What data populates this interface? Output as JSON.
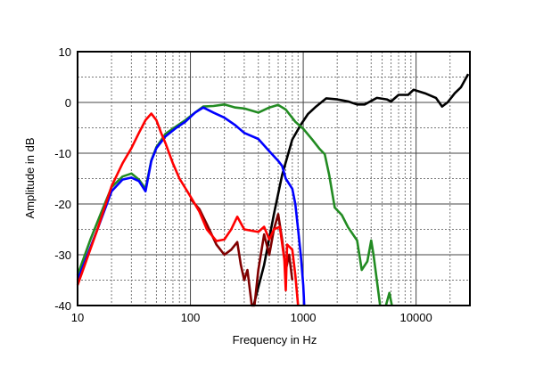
{
  "chart_data": {
    "type": "line",
    "title": "",
    "xlabel": "Frequency in Hz",
    "ylabel": "Amplitude in dB",
    "xscale": "log",
    "xlim": [
      10,
      30000
    ],
    "ylim": [
      -40,
      10
    ],
    "grid": true,
    "x_ticks": [
      "10",
      "100",
      "1000",
      "10000"
    ],
    "y_ticks": [
      "10",
      "0",
      "-10",
      "-20",
      "-30",
      "-40"
    ],
    "series": [
      {
        "color": "#000000",
        "points": [
          [
            363,
            -40
          ],
          [
            450,
            -32
          ],
          [
            550,
            -22
          ],
          [
            650,
            -14.3
          ],
          [
            800,
            -7.3
          ],
          [
            950,
            -4.4
          ],
          [
            1100,
            -2.3
          ],
          [
            1300,
            -0.8
          ],
          [
            1600,
            0.8
          ],
          [
            2000,
            0.6
          ],
          [
            2500,
            0.2
          ],
          [
            3000,
            -0.4
          ],
          [
            3500,
            -0.4
          ],
          [
            4500,
            0.9
          ],
          [
            5500,
            0.6
          ],
          [
            6000,
            0.2
          ],
          [
            7000,
            1.5
          ],
          [
            8500,
            1.5
          ],
          [
            9500,
            2.5
          ],
          [
            12000,
            1.8
          ],
          [
            15000,
            0.9
          ],
          [
            17000,
            -0.8
          ],
          [
            19000,
            0
          ],
          [
            22000,
            1.8
          ],
          [
            25000,
            3
          ],
          [
            29000,
            5.6
          ]
        ]
      },
      {
        "color": "#228b22",
        "points": [
          [
            10,
            -34
          ],
          [
            13,
            -27
          ],
          [
            16,
            -22
          ],
          [
            20,
            -16.7
          ],
          [
            25,
            -14.6
          ],
          [
            30,
            -14
          ],
          [
            35,
            -15.2
          ],
          [
            40,
            -17
          ],
          [
            45,
            -11.4
          ],
          [
            50,
            -8.8
          ],
          [
            60,
            -6.2
          ],
          [
            75,
            -4.7
          ],
          [
            90,
            -3.5
          ],
          [
            110,
            -2
          ],
          [
            130,
            -0.8
          ],
          [
            160,
            -0.7
          ],
          [
            200,
            -0.4
          ],
          [
            250,
            -1
          ],
          [
            300,
            -1.2
          ],
          [
            400,
            -2
          ],
          [
            500,
            -1
          ],
          [
            600,
            -0.5
          ],
          [
            700,
            -1.4
          ],
          [
            850,
            -3.8
          ],
          [
            1000,
            -5.2
          ],
          [
            1200,
            -7.3
          ],
          [
            1400,
            -9.2
          ],
          [
            1550,
            -10.2
          ],
          [
            1700,
            -14.3
          ],
          [
            1900,
            -20.7
          ],
          [
            2200,
            -22.2
          ],
          [
            2500,
            -24.6
          ],
          [
            3000,
            -27.2
          ],
          [
            3300,
            -33
          ],
          [
            3700,
            -31.3
          ],
          [
            4000,
            -27.2
          ],
          [
            4200,
            -30
          ],
          [
            4800,
            -40
          ]
        ]
      },
      {
        "color": "#228b22",
        "points": [
          [
            5400,
            -40
          ],
          [
            5800,
            -37.5
          ],
          [
            6100,
            -40
          ]
        ]
      },
      {
        "color": "#0000ff",
        "points": [
          [
            10,
            -35
          ],
          [
            15,
            -25
          ],
          [
            20,
            -17.5
          ],
          [
            25,
            -15.2
          ],
          [
            30,
            -14.8
          ],
          [
            35,
            -15.5
          ],
          [
            40,
            -17.5
          ],
          [
            45,
            -11.5
          ],
          [
            50,
            -9
          ],
          [
            60,
            -6.7
          ],
          [
            75,
            -5
          ],
          [
            90,
            -3.8
          ],
          [
            110,
            -2
          ],
          [
            130,
            -1
          ],
          [
            160,
            -2
          ],
          [
            200,
            -3
          ],
          [
            250,
            -4.5
          ],
          [
            300,
            -6
          ],
          [
            400,
            -7.2
          ],
          [
            500,
            -9.6
          ],
          [
            600,
            -11.5
          ],
          [
            650,
            -12.5
          ],
          [
            700,
            -15
          ],
          [
            800,
            -17
          ],
          [
            850,
            -20
          ],
          [
            900,
            -25
          ],
          [
            950,
            -30
          ],
          [
            1000,
            -36
          ],
          [
            1020,
            -40
          ]
        ]
      },
      {
        "color": "#800000",
        "points": [
          [
            100,
            -19
          ],
          [
            120,
            -21
          ],
          [
            140,
            -24
          ],
          [
            170,
            -28
          ],
          [
            200,
            -30
          ],
          [
            230,
            -29
          ],
          [
            260,
            -27.5
          ],
          [
            280,
            -32
          ],
          [
            300,
            -35
          ],
          [
            320,
            -33
          ],
          [
            350,
            -40
          ],
          [
            370,
            -40
          ],
          [
            400,
            -33
          ],
          [
            450,
            -26
          ],
          [
            500,
            -30
          ],
          [
            550,
            -25
          ],
          [
            600,
            -22
          ],
          [
            650,
            -27
          ],
          [
            700,
            -33
          ],
          [
            750,
            -30
          ],
          [
            800,
            -35
          ]
        ]
      },
      {
        "color": "#ff0000",
        "points": [
          [
            10,
            -36
          ],
          [
            15,
            -25
          ],
          [
            20,
            -16.5
          ],
          [
            25,
            -12
          ],
          [
            30,
            -9
          ],
          [
            35,
            -6
          ],
          [
            40,
            -3.5
          ],
          [
            45,
            -2.2
          ],
          [
            50,
            -3.5
          ],
          [
            55,
            -6
          ],
          [
            60,
            -8
          ],
          [
            70,
            -12
          ],
          [
            80,
            -15
          ],
          [
            100,
            -18.5
          ],
          [
            120,
            -21.5
          ],
          [
            140,
            -25
          ],
          [
            170,
            -27.3
          ],
          [
            200,
            -27
          ],
          [
            230,
            -25
          ],
          [
            260,
            -22.5
          ],
          [
            300,
            -25
          ],
          [
            400,
            -25.5
          ],
          [
            450,
            -24.5
          ],
          [
            500,
            -27
          ],
          [
            550,
            -25
          ],
          [
            620,
            -24.5
          ],
          [
            680,
            -31
          ],
          [
            700,
            -37
          ],
          [
            720,
            -28
          ],
          [
            800,
            -29
          ],
          [
            850,
            -34
          ],
          [
            900,
            -40
          ]
        ]
      }
    ]
  }
}
